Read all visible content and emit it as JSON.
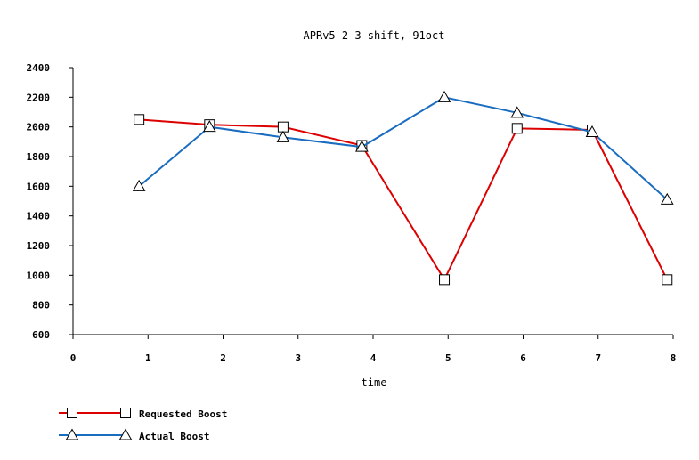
{
  "chart_data": {
    "type": "line",
    "title": "APRv5 2-3 shift, 91oct",
    "xlabel": "time",
    "ylabel": "",
    "xlim": [
      0,
      8
    ],
    "ylim": [
      600,
      2400
    ],
    "x_ticks": [
      "0",
      "1",
      "2",
      "3",
      "4",
      "5",
      "6",
      "7",
      "8"
    ],
    "y_ticks": [
      "600",
      "800",
      "1000",
      "1200",
      "1400",
      "1600",
      "1800",
      "2000",
      "2200",
      "2400"
    ],
    "grid": false,
    "legend_position": "bottom-left",
    "series": [
      {
        "name": "Requested Boost",
        "color": "#dd0000",
        "marker": "square",
        "x": [
          0.88,
          1.82,
          2.8,
          3.85,
          4.95,
          5.92,
          6.92,
          7.92
        ],
        "y": [
          2050,
          2015,
          2000,
          1875,
          970,
          1990,
          1980,
          970
        ]
      },
      {
        "name": "Actual Boost",
        "color": "#1a6cc0",
        "marker": "triangle",
        "x": [
          0.88,
          1.82,
          2.8,
          3.85,
          4.95,
          5.92,
          6.92,
          7.92
        ],
        "y": [
          1600,
          2000,
          1930,
          1865,
          2200,
          2095,
          1965,
          1510
        ]
      }
    ]
  }
}
